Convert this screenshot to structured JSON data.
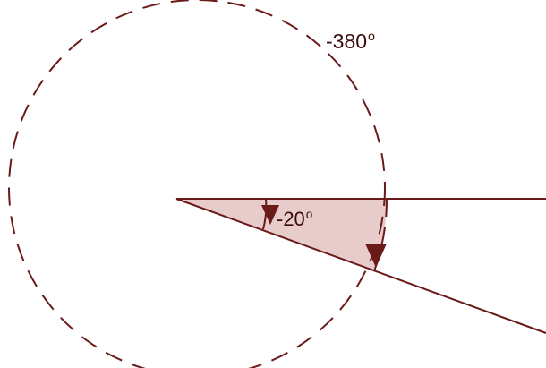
{
  "colors": {
    "stroke": "#6b1a1a",
    "fill": "#e8cccc",
    "text": "#3a0b0b"
  },
  "angles": {
    "reference_angle": {
      "value": "-20",
      "unit": "o"
    },
    "coterminal_angle": {
      "value": "-380",
      "unit": "o"
    }
  },
  "icons": [
    "arrow-down-icon",
    "arrow-down-icon"
  ]
}
